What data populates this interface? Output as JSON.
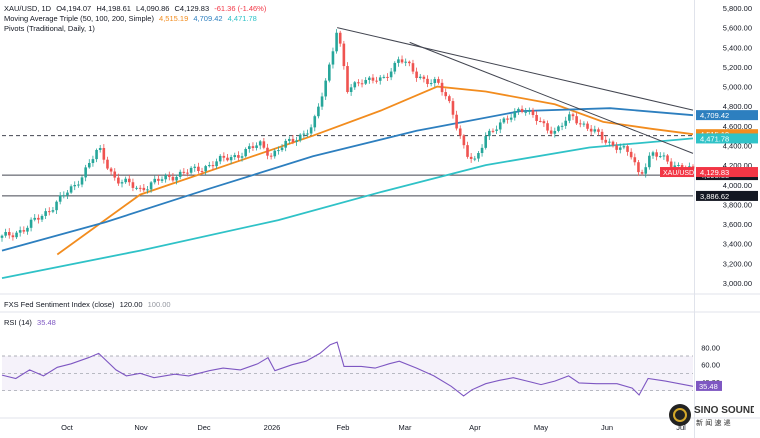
{
  "header": {
    "symbol": "XAU/USD, 1D",
    "open": "O4,194.07",
    "high": "H4,198.61",
    "low": "L4,090.86",
    "close": "C4,129.83",
    "change": "-61.36 (-1.46%)",
    "ma_label": "Moving Average Triple (50, 100, 200, Simple)",
    "ma_values": [
      "4,515.19",
      "4,709.42",
      "4,471.78"
    ],
    "pivots_label": "Pivots (Traditional, Daily, 1)",
    "sentiment_label": "FXS Fed Sentiment Index (close)",
    "sentiment_value": "120.00",
    "sentiment_value2": "100.00",
    "rsi_label": "RSI (14)",
    "rsi_value": "35.48"
  },
  "logo": {
    "line1": "SINO SOUND",
    "line2": "新 闻 速 递"
  },
  "colors": {
    "up": "#26a69a",
    "down": "#ef5350",
    "ma50": "#f28c1e",
    "ma100": "#2d7fbf",
    "ma200": "#2fc2c7",
    "rsi": "#7e57c2",
    "price_label": "#f23645",
    "trend": "#434651"
  },
  "chart_data": [
    {
      "type": "candlestick",
      "title": "XAU/USD, 1D",
      "ylim": [
        3000,
        5800
      ],
      "y_ticks": [
        3000,
        3200,
        3400,
        3600,
        3800,
        4000,
        4200,
        4400,
        4600,
        4800,
        5000,
        5200,
        5400,
        5600,
        5800
      ],
      "x_ticks": [
        "Oct",
        "Nov",
        "Dec",
        "2026",
        "Feb",
        "Mar",
        "Apr",
        "May",
        "Jun",
        "Jul"
      ],
      "price_path": [
        [
          0,
          3460
        ],
        [
          0.035,
          3560
        ],
        [
          0.07,
          3760
        ],
        [
          0.105,
          3990
        ],
        [
          0.14,
          4360
        ],
        [
          0.165,
          4050
        ],
        [
          0.2,
          3960
        ],
        [
          0.24,
          4080
        ],
        [
          0.28,
          4150
        ],
        [
          0.31,
          4230
        ],
        [
          0.35,
          4330
        ],
        [
          0.375,
          4420
        ],
        [
          0.39,
          4300
        ],
        [
          0.42,
          4460
        ],
        [
          0.45,
          4580
        ],
        [
          0.47,
          5100
        ],
        [
          0.485,
          5600
        ],
        [
          0.5,
          4950
        ],
        [
          0.52,
          5080
        ],
        [
          0.55,
          5050
        ],
        [
          0.575,
          5300
        ],
        [
          0.6,
          5110
        ],
        [
          0.63,
          5030
        ],
        [
          0.65,
          4800
        ],
        [
          0.672,
          4300
        ],
        [
          0.685,
          4220
        ],
        [
          0.7,
          4520
        ],
        [
          0.725,
          4620
        ],
        [
          0.75,
          4800
        ],
        [
          0.775,
          4650
        ],
        [
          0.8,
          4540
        ],
        [
          0.825,
          4700
        ],
        [
          0.845,
          4600
        ],
        [
          0.87,
          4460
        ],
        [
          0.895,
          4380
        ],
        [
          0.912,
          4280
        ],
        [
          0.922,
          4100
        ],
        [
          0.94,
          4320
        ],
        [
          0.96,
          4250
        ],
        [
          0.98,
          4190
        ],
        [
          1,
          4130
        ]
      ],
      "moving_averages": [
        {
          "period": 50,
          "points": [
            [
              0.08,
              3290
            ],
            [
              0.2,
              3900
            ],
            [
              0.35,
              4260
            ],
            [
              0.45,
              4500
            ],
            [
              0.55,
              4760
            ],
            [
              0.63,
              5000
            ],
            [
              0.7,
              4950
            ],
            [
              0.8,
              4820
            ],
            [
              0.87,
              4640
            ],
            [
              0.94,
              4570
            ],
            [
              1,
              4515
            ]
          ]
        },
        {
          "period": 100,
          "points": [
            [
              0,
              3330
            ],
            [
              0.15,
              3620
            ],
            [
              0.3,
              3960
            ],
            [
              0.45,
              4290
            ],
            [
              0.6,
              4550
            ],
            [
              0.75,
              4750
            ],
            [
              0.88,
              4780
            ],
            [
              1,
              4709
            ]
          ]
        },
        {
          "period": 200,
          "points": [
            [
              0,
              3050
            ],
            [
              0.2,
              3330
            ],
            [
              0.4,
              3640
            ],
            [
              0.55,
              3930
            ],
            [
              0.7,
              4200
            ],
            [
              0.85,
              4380
            ],
            [
              1,
              4472
            ]
          ]
        }
      ],
      "trendlines": [
        {
          "from": [
            0.485,
            5600
          ],
          "to": [
            1,
            4760
          ]
        },
        {
          "from": [
            0.59,
            5450
          ],
          "to": [
            1,
            4320
          ]
        }
      ],
      "horizontal_levels": [
        {
          "value": 4500,
          "style": "dashed",
          "label": "4,500.00"
        },
        {
          "value": 4098.88,
          "style": "solid",
          "label": "4,098.88"
        },
        {
          "value": 3886.62,
          "style": "solid",
          "label": "3,886.62"
        }
      ],
      "price_labels": [
        {
          "value": 4709.42,
          "text": "4,709.42",
          "color": "#2d7fbf"
        },
        {
          "value": 4515.19,
          "text": "4,515.19",
          "color": "#f28c1e"
        },
        {
          "value": 4471.78,
          "text": "4,471.78",
          "color": "#2fc2c7"
        },
        {
          "value": 4129.83,
          "text": "4,129.83",
          "color": "#f23645",
          "tag": "XAU/USD"
        }
      ]
    },
    {
      "type": "line",
      "title": "RSI (14)",
      "ylim": [
        10,
        100
      ],
      "y_ticks": [
        40,
        60,
        80
      ],
      "bands": [
        30,
        70
      ],
      "last_value": 35.48,
      "points": [
        [
          0,
          48
        ],
        [
          0.02,
          44
        ],
        [
          0.04,
          54
        ],
        [
          0.06,
          47
        ],
        [
          0.08,
          57
        ],
        [
          0.1,
          61
        ],
        [
          0.125,
          68
        ],
        [
          0.14,
          73
        ],
        [
          0.165,
          54
        ],
        [
          0.18,
          47
        ],
        [
          0.2,
          50
        ],
        [
          0.22,
          45
        ],
        [
          0.25,
          49
        ],
        [
          0.27,
          47
        ],
        [
          0.3,
          53
        ],
        [
          0.32,
          56
        ],
        [
          0.345,
          54
        ],
        [
          0.37,
          61
        ],
        [
          0.385,
          68
        ],
        [
          0.395,
          53
        ],
        [
          0.42,
          60
        ],
        [
          0.44,
          64
        ],
        [
          0.46,
          73
        ],
        [
          0.475,
          83
        ],
        [
          0.485,
          86
        ],
        [
          0.495,
          58
        ],
        [
          0.52,
          58
        ],
        [
          0.54,
          56
        ],
        [
          0.56,
          61
        ],
        [
          0.575,
          64
        ],
        [
          0.6,
          56
        ],
        [
          0.625,
          47
        ],
        [
          0.65,
          35
        ],
        [
          0.668,
          24
        ],
        [
          0.68,
          31
        ],
        [
          0.7,
          38
        ],
        [
          0.72,
          42
        ],
        [
          0.74,
          45
        ],
        [
          0.76,
          41
        ],
        [
          0.78,
          37
        ],
        [
          0.8,
          41
        ],
        [
          0.82,
          47
        ],
        [
          0.835,
          39
        ],
        [
          0.86,
          38
        ],
        [
          0.89,
          38
        ],
        [
          0.912,
          33
        ],
        [
          0.922,
          25
        ],
        [
          0.935,
          44
        ],
        [
          0.96,
          41
        ],
        [
          0.98,
          38
        ],
        [
          1,
          35
        ]
      ]
    }
  ]
}
